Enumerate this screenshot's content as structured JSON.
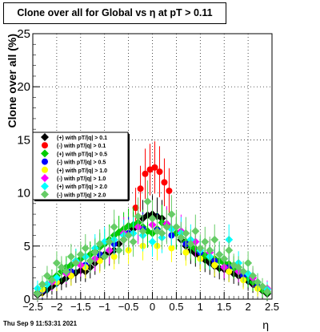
{
  "title": "Clone  over all for Global vs    η  at pT > 0.11",
  "footer": "Thu Sep  9 11:53:31 2021",
  "chart_data": {
    "type": "scatter",
    "xlabel": "η",
    "ylabel": "Clone  over all (%)",
    "xlim": [
      -2.5,
      2.5
    ],
    "ylim": [
      0,
      25
    ],
    "x_ticks": [
      "−2.5",
      "−2",
      "−1.5",
      "−1",
      "−0.5",
      "0",
      "0.5",
      "1",
      "1.5",
      "2",
      "2.5"
    ],
    "y_ticks": [
      "0",
      "5",
      "10",
      "15",
      "20",
      "25"
    ],
    "grid": true,
    "legend_position": "left",
    "series": [
      {
        "name": "(+) with pT/|q| > 0.1",
        "color": "#000000",
        "marker": "diamond",
        "x": [
          -2.4,
          -2.3,
          -2.2,
          -2.1,
          -2.0,
          -1.9,
          -1.8,
          -1.7,
          -1.6,
          -1.5,
          -1.4,
          -1.3,
          -1.2,
          -1.1,
          -1.0,
          -0.9,
          -0.8,
          -0.7,
          -0.6,
          -0.5,
          -0.4,
          -0.3,
          -0.2,
          -0.1,
          0.0,
          0.1,
          0.2,
          0.3,
          0.4,
          0.5,
          0.6,
          0.7,
          0.8,
          0.9,
          1.0,
          1.1,
          1.2,
          1.3,
          1.4,
          1.5,
          1.6,
          1.7,
          1.8,
          1.9,
          2.0,
          2.1,
          2.2,
          2.3,
          2.4
        ],
        "y": [
          0.4,
          0.6,
          0.9,
          1.2,
          1.5,
          1.7,
          2.0,
          2.2,
          2.5,
          2.7,
          2.6,
          3.0,
          3.4,
          3.8,
          4.2,
          4.4,
          4.6,
          5.2,
          5.6,
          6.2,
          6.6,
          7.2,
          7.6,
          7.9,
          8.0,
          7.8,
          7.6,
          7.0,
          6.6,
          6.2,
          5.6,
          5.0,
          4.6,
          4.3,
          4.0,
          3.7,
          3.4,
          3.1,
          2.9,
          2.8,
          2.6,
          2.4,
          2.2,
          2.0,
          1.7,
          1.4,
          1.1,
          0.8,
          0.5
        ]
      },
      {
        "name": "(-) with pT/|q| > 0.1",
        "color": "#ff0000",
        "marker": "circle",
        "x": [
          -0.35,
          -0.25,
          -0.15,
          -0.05,
          0.05,
          0.15,
          0.25,
          0.35
        ],
        "y": [
          8.6,
          10.4,
          11.8,
          12.2,
          12.4,
          12.0,
          11.0,
          10.2
        ]
      },
      {
        "name": "(+) with pT/|q| > 0.5",
        "color": "#00cc00",
        "marker": "diamond",
        "x": [
          -2.4,
          -2.3,
          -2.2,
          -2.1,
          -2.0,
          -1.9,
          -1.8,
          -1.7,
          -1.6,
          -1.5,
          -1.4,
          -1.3,
          -1.2,
          -1.1,
          -1.0,
          -0.9,
          -0.8,
          -0.7,
          -0.6,
          -0.5,
          -0.4,
          -0.3,
          -0.2,
          -0.1,
          0.0,
          0.1,
          0.2,
          0.3,
          0.4,
          0.5,
          0.6,
          0.7,
          0.8,
          0.9,
          1.0,
          1.1,
          1.2,
          1.3,
          1.4,
          1.5,
          1.6,
          1.7,
          1.8,
          1.9,
          2.0,
          2.1,
          2.2,
          2.3,
          2.4
        ],
        "y": [
          0.6,
          1.0,
          1.4,
          1.9,
          2.2,
          2.6,
          3.0,
          3.2,
          3.6,
          3.8,
          4.0,
          4.2,
          4.5,
          4.9,
          5.2,
          5.6,
          6.0,
          6.3,
          6.6,
          6.9,
          7.0,
          7.2,
          6.8,
          6.4,
          6.2,
          6.6,
          7.2,
          7.0,
          6.6,
          6.2,
          5.8,
          5.4,
          5.0,
          4.7,
          4.4,
          4.1,
          3.9,
          3.8,
          3.6,
          3.4,
          3.3,
          3.0,
          2.7,
          2.4,
          2.0,
          1.6,
          1.2,
          0.9,
          0.6
        ]
      },
      {
        "name": "(-) with pT/|q| > 0.5",
        "color": "#0000ff",
        "marker": "circle",
        "x": [
          -2.3,
          -2.0,
          -1.7,
          -1.4,
          -1.1,
          -0.8,
          -0.5,
          -0.2,
          0.1,
          0.4,
          0.7,
          1.0,
          1.3,
          1.6,
          1.9,
          2.2
        ],
        "y": [
          0.8,
          1.8,
          2.6,
          3.2,
          4.2,
          5.2,
          6.2,
          6.6,
          6.5,
          6.0,
          5.2,
          4.4,
          3.6,
          3.0,
          2.2,
          1.2
        ]
      },
      {
        "name": "(+) with pT/|q| > 1.0",
        "color": "#ffff00",
        "marker": "circle",
        "x": [
          -2.3,
          -2.0,
          -1.7,
          -1.4,
          -1.1,
          -0.8,
          -0.5,
          -0.2,
          0.1,
          0.4,
          0.7,
          1.0,
          1.3,
          1.6,
          1.9,
          2.2
        ],
        "y": [
          0.9,
          1.6,
          2.2,
          3.0,
          3.6,
          4.0,
          4.6,
          5.0,
          5.0,
          4.8,
          4.4,
          3.8,
          3.2,
          2.6,
          1.8,
          1.0
        ]
      },
      {
        "name": "(-) with pT/|q| > 1.0",
        "color": "#ff00ff",
        "marker": "diamond",
        "x": [
          -2.4,
          -2.1,
          -1.8,
          -1.5,
          -1.2,
          -0.9,
          -0.6,
          -0.3,
          0.0,
          0.3,
          0.6,
          0.9,
          1.2,
          1.5,
          1.8,
          2.1,
          2.4
        ],
        "y": [
          0.5,
          1.6,
          2.4,
          3.2,
          3.8,
          4.6,
          6.2,
          6.8,
          7.0,
          7.1,
          6.4,
          5.4,
          4.4,
          3.0,
          2.6,
          2.0,
          1.0
        ]
      },
      {
        "name": "(+) with pT/|q| > 2.0",
        "color": "#00ffff",
        "marker": "diamond",
        "x": [
          -2.4,
          -2.2,
          -2.0,
          -1.8,
          -1.6,
          -1.4,
          -1.2,
          -1.0,
          -0.8,
          -0.6,
          -0.4,
          -0.2,
          0.0,
          0.2,
          0.4,
          0.6,
          0.8,
          1.0,
          1.2,
          1.4,
          1.6,
          1.8,
          2.0,
          2.2,
          2.4
        ],
        "y": [
          1.0,
          1.4,
          2.0,
          2.6,
          3.6,
          4.0,
          4.8,
          5.4,
          5.6,
          6.0,
          6.2,
          6.0,
          5.4,
          5.8,
          6.6,
          6.2,
          5.6,
          4.6,
          4.0,
          4.2,
          5.6,
          3.4,
          2.4,
          1.6,
          0.9
        ]
      },
      {
        "name": "(-) with pT/|q| > 2.0",
        "color": "#66cc66",
        "marker": "diamond",
        "x": [
          -2.4,
          -2.3,
          -2.2,
          -2.1,
          -2.0,
          -1.9,
          -1.8,
          -1.7,
          -1.6,
          -1.5,
          -1.4,
          -1.3,
          -1.2,
          -1.1,
          -1.0,
          -0.9,
          -0.8,
          -0.7,
          -0.6,
          -0.5,
          -0.4,
          -0.3,
          -0.2,
          -0.1,
          0.0,
          0.1,
          0.2,
          0.3,
          0.4,
          0.5,
          0.6,
          0.7,
          0.8,
          0.9,
          1.0,
          1.1,
          1.2,
          1.3,
          1.4,
          1.5,
          1.6,
          1.7,
          1.8,
          1.9,
          2.0,
          2.1,
          2.2,
          2.3,
          2.4
        ],
        "y": [
          0.5,
          1.4,
          2.2,
          1.8,
          3.4,
          3.0,
          2.6,
          4.0,
          3.4,
          4.2,
          4.8,
          3.6,
          4.4,
          5.2,
          4.0,
          5.4,
          6.8,
          4.6,
          5.6,
          6.0,
          5.4,
          7.8,
          6.4,
          9.2,
          7.6,
          6.4,
          6.2,
          6.8,
          8.0,
          6.8,
          5.8,
          6.2,
          5.2,
          6.4,
          4.8,
          5.4,
          4.6,
          5.6,
          4.2,
          3.8,
          4.6,
          3.2,
          3.0,
          2.6,
          3.4,
          2.2,
          1.6,
          1.2,
          0.7
        ]
      }
    ]
  }
}
